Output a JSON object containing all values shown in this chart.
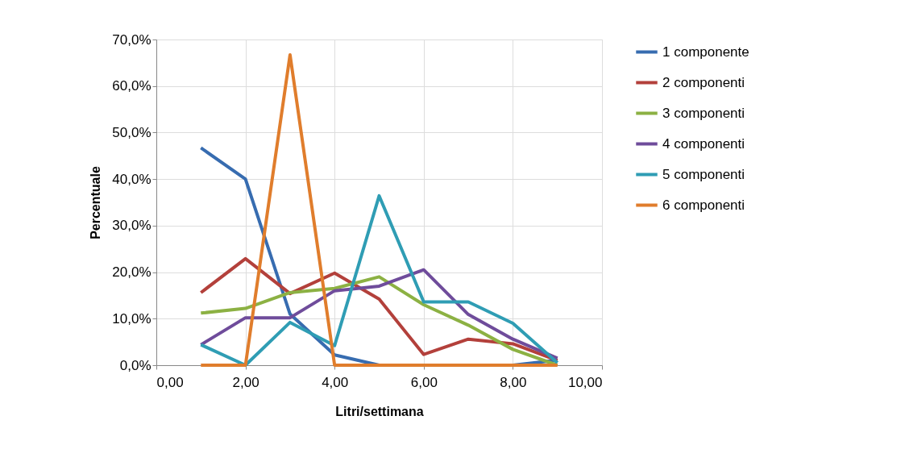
{
  "chart_data": {
    "type": "line",
    "xlabel": "Litri/settimana",
    "ylabel": "Percentuale",
    "x": [
      1,
      2,
      3,
      4,
      5,
      6,
      7,
      8,
      9
    ],
    "xlim": [
      0,
      10
    ],
    "ylim": [
      0,
      70
    ],
    "xticks": [
      {
        "value": 0,
        "label": "0,00"
      },
      {
        "value": 2,
        "label": "2,00"
      },
      {
        "value": 4,
        "label": "4,00"
      },
      {
        "value": 6,
        "label": "6,00"
      },
      {
        "value": 8,
        "label": "8,00"
      },
      {
        "value": 10,
        "label": "10,00"
      }
    ],
    "yticks": [
      {
        "value": 0,
        "label": "0,0%"
      },
      {
        "value": 10,
        "label": "10,0%"
      },
      {
        "value": 20,
        "label": "20,0%"
      },
      {
        "value": 30,
        "label": "30,0%"
      },
      {
        "value": 40,
        "label": "40,0%"
      },
      {
        "value": 50,
        "label": "50,0%"
      },
      {
        "value": 60,
        "label": "60,0%"
      },
      {
        "value": 70,
        "label": "70,0%"
      }
    ],
    "grid": true,
    "legend": "right",
    "marker": "none",
    "line_style": "solid",
    "series": [
      {
        "name": "1 componente",
        "color": "#376cb0",
        "values": [
          46.7,
          40.0,
          11.0,
          2.2,
          0,
          0,
          0,
          0,
          1.1
        ]
      },
      {
        "name": "2 componenti",
        "color": "#b3403b",
        "values": [
          15.6,
          22.9,
          15.4,
          19.8,
          14.2,
          2.3,
          5.6,
          4.6,
          1.0
        ]
      },
      {
        "name": "3 componenti",
        "color": "#8cb143",
        "values": [
          11.2,
          12.2,
          15.6,
          16.5,
          19.0,
          13.0,
          8.6,
          3.4,
          0
        ]
      },
      {
        "name": "4 componenti",
        "color": "#6f4c9b",
        "values": [
          4.4,
          10.2,
          10.2,
          16.0,
          17.0,
          20.5,
          10.9,
          5.6,
          1.5
        ]
      },
      {
        "name": "5 componenti",
        "color": "#2f9db4",
        "values": [
          4.4,
          0,
          9.2,
          4.2,
          36.4,
          13.6,
          13.6,
          9.0,
          0.5
        ]
      },
      {
        "name": "6 componenti",
        "color": "#e07d2c",
        "values": [
          0,
          0,
          66.7,
          0,
          0,
          0,
          0,
          0,
          0
        ]
      }
    ]
  }
}
